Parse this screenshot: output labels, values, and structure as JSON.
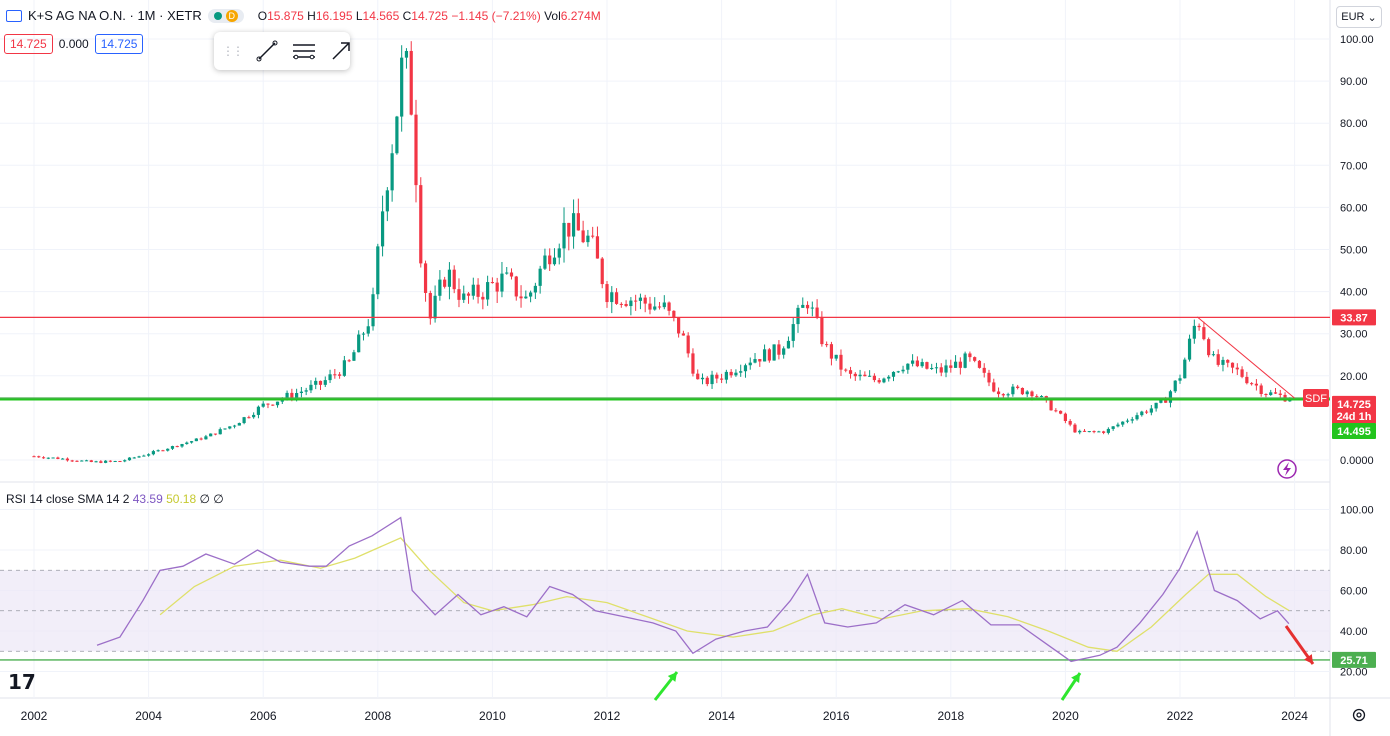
{
  "header": {
    "symbol_title": "K+S AG NA O.N. · 1M · XETR",
    "status_badge": "D",
    "o_label": "O",
    "o_value": "15.875",
    "h_label": "H",
    "h_value": "16.195",
    "l_label": "L",
    "l_value": "14.565",
    "c_label": "C",
    "c_value": "14.725",
    "change": "−1.145 (−7.21%)",
    "vol_label": "Vol",
    "vol_value": "6.274M"
  },
  "price_boxes": {
    "bid": "14.725",
    "spread": "0.000",
    "ask": "14.725"
  },
  "currency": "EUR",
  "rsi_legend": {
    "label": "RSI 14 close SMA 14 2",
    "rsi_value": "43.59",
    "sma_value": "50.18",
    "v3": "∅",
    "v4": "∅"
  },
  "colors": {
    "up": "#089981",
    "down": "#f23645",
    "rsi": "#9c6fc8",
    "rsi_sma": "#dfe06a",
    "hline_red": "#f23645",
    "hline_green": "#4caf50",
    "green_thick": "#22c41d"
  },
  "chart_data": [
    {
      "type": "candlestick",
      "interval": "1M",
      "x_ticks": [
        "2002",
        "2004",
        "2006",
        "2008",
        "2010",
        "2012",
        "2014",
        "2016",
        "2018",
        "2020",
        "2022",
        "2024"
      ],
      "y_ticks": [
        "100.00",
        "90.00",
        "80.00",
        "70.00",
        "60.00",
        "50.00",
        "40.00",
        "30.00",
        "20.00",
        "0.0000"
      ],
      "ylim": [
        0,
        100
      ],
      "close_series": [
        {
          "t": 2002.0,
          "c": 0.9
        },
        {
          "t": 2002.5,
          "c": 0.3
        },
        {
          "t": 2003.0,
          "c": -0.5
        },
        {
          "t": 2003.5,
          "c": -0.3
        },
        {
          "t": 2004.0,
          "c": 1.5
        },
        {
          "t": 2004.5,
          "c": 3.5
        },
        {
          "t": 2005.0,
          "c": 5.5
        },
        {
          "t": 2005.5,
          "c": 8.5
        },
        {
          "t": 2006.0,
          "c": 13.0
        },
        {
          "t": 2006.5,
          "c": 15.5
        },
        {
          "t": 2007.0,
          "c": 18.0
        },
        {
          "t": 2007.5,
          "c": 23.0
        },
        {
          "t": 2007.9,
          "c": 35.0
        },
        {
          "t": 2008.1,
          "c": 62.0
        },
        {
          "t": 2008.3,
          "c": 80.0
        },
        {
          "t": 2008.45,
          "c": 96.0
        },
        {
          "t": 2008.6,
          "c": 84.0
        },
        {
          "t": 2008.75,
          "c": 50.0
        },
        {
          "t": 2008.9,
          "c": 33.0
        },
        {
          "t": 2009.2,
          "c": 45.0
        },
        {
          "t": 2009.5,
          "c": 38.0
        },
        {
          "t": 2009.8,
          "c": 40.0
        },
        {
          "t": 2010.2,
          "c": 43.0
        },
        {
          "t": 2010.6,
          "c": 38.0
        },
        {
          "t": 2011.0,
          "c": 50.0
        },
        {
          "t": 2011.3,
          "c": 56.0
        },
        {
          "t": 2011.7,
          "c": 52.0
        },
        {
          "t": 2012.0,
          "c": 40.0
        },
        {
          "t": 2012.5,
          "c": 38.0
        },
        {
          "t": 2013.0,
          "c": 36.0
        },
        {
          "t": 2013.3,
          "c": 30.0
        },
        {
          "t": 2013.6,
          "c": 18.0
        },
        {
          "t": 2014.0,
          "c": 20.0
        },
        {
          "t": 2014.5,
          "c": 24.0
        },
        {
          "t": 2015.0,
          "c": 26.0
        },
        {
          "t": 2015.5,
          "c": 38.0
        },
        {
          "t": 2015.8,
          "c": 27.0
        },
        {
          "t": 2016.2,
          "c": 20.0
        },
        {
          "t": 2016.7,
          "c": 19.0
        },
        {
          "t": 2017.2,
          "c": 23.0
        },
        {
          "t": 2017.8,
          "c": 21.0
        },
        {
          "t": 2018.3,
          "c": 24.0
        },
        {
          "t": 2018.8,
          "c": 16.5
        },
        {
          "t": 2019.4,
          "c": 16.5
        },
        {
          "t": 2019.8,
          "c": 12.0
        },
        {
          "t": 2020.2,
          "c": 6.5
        },
        {
          "t": 2020.7,
          "c": 6.8
        },
        {
          "t": 2021.2,
          "c": 10.5
        },
        {
          "t": 2021.7,
          "c": 13.5
        },
        {
          "t": 2022.0,
          "c": 20.0
        },
        {
          "t": 2022.3,
          "c": 34.0
        },
        {
          "t": 2022.6,
          "c": 23.0
        },
        {
          "t": 2023.0,
          "c": 21.0
        },
        {
          "t": 2023.5,
          "c": 16.0
        },
        {
          "t": 2023.9,
          "c": 14.7
        }
      ],
      "horizontal_lines": [
        {
          "label": "33.87",
          "value": 33.87,
          "color": "#f23645"
        },
        {
          "label": "14.495",
          "value": 14.495,
          "color": "#22c41d"
        },
        {
          "value": 14.725,
          "color": "#4caf50"
        }
      ],
      "last_price_tag": {
        "symbol": "SDF",
        "price": "14.725",
        "countdown": "24d 1h"
      },
      "trendline": {
        "from": {
          "t": 2022.3,
          "v": 34.0
        },
        "to": {
          "t": 2024.0,
          "v": 14.7
        }
      }
    },
    {
      "type": "line",
      "title": "RSI 14 close SMA 14 2",
      "y_ticks": [
        "100.00",
        "80.00",
        "60.00",
        "40.00",
        "20.00"
      ],
      "ylim": [
        20,
        100
      ],
      "band": [
        30,
        70
      ],
      "horizontal_lines": [
        {
          "label": "25.71",
          "value": 25.71,
          "color": "#4caf50"
        }
      ],
      "series": [
        {
          "values": [
            {
              "t": 2003.1,
              "v": 33
            },
            {
              "t": 2003.5,
              "v": 37
            },
            {
              "t": 2003.9,
              "v": 55
            },
            {
              "t": 2004.2,
              "v": 70
            },
            {
              "t": 2004.6,
              "v": 72
            },
            {
              "t": 2005.0,
              "v": 78
            },
            {
              "t": 2005.5,
              "v": 73
            },
            {
              "t": 2005.9,
              "v": 80
            },
            {
              "t": 2006.3,
              "v": 74
            },
            {
              "t": 2006.8,
              "v": 72
            },
            {
              "t": 2007.1,
              "v": 72
            },
            {
              "t": 2007.5,
              "v": 82
            },
            {
              "t": 2007.9,
              "v": 87
            },
            {
              "t": 2008.4,
              "v": 96
            },
            {
              "t": 2008.6,
              "v": 60
            },
            {
              "t": 2009.0,
              "v": 48
            },
            {
              "t": 2009.4,
              "v": 58
            },
            {
              "t": 2009.8,
              "v": 48
            },
            {
              "t": 2010.2,
              "v": 52
            },
            {
              "t": 2010.6,
              "v": 47
            },
            {
              "t": 2011.0,
              "v": 62
            },
            {
              "t": 2011.4,
              "v": 58
            },
            {
              "t": 2011.8,
              "v": 50
            },
            {
              "t": 2012.3,
              "v": 47
            },
            {
              "t": 2012.8,
              "v": 44
            },
            {
              "t": 2013.2,
              "v": 40
            },
            {
              "t": 2013.5,
              "v": 29
            },
            {
              "t": 2013.9,
              "v": 36
            },
            {
              "t": 2014.4,
              "v": 40
            },
            {
              "t": 2014.8,
              "v": 42
            },
            {
              "t": 2015.2,
              "v": 55
            },
            {
              "t": 2015.5,
              "v": 68
            },
            {
              "t": 2015.8,
              "v": 44
            },
            {
              "t": 2016.2,
              "v": 42
            },
            {
              "t": 2016.7,
              "v": 44
            },
            {
              "t": 2017.2,
              "v": 53
            },
            {
              "t": 2017.7,
              "v": 48
            },
            {
              "t": 2018.2,
              "v": 55
            },
            {
              "t": 2018.7,
              "v": 43
            },
            {
              "t": 2019.2,
              "v": 43
            },
            {
              "t": 2019.7,
              "v": 33
            },
            {
              "t": 2020.1,
              "v": 25
            },
            {
              "t": 2020.6,
              "v": 28
            },
            {
              "t": 2020.9,
              "v": 32
            },
            {
              "t": 2021.3,
              "v": 44
            },
            {
              "t": 2021.7,
              "v": 58
            },
            {
              "t": 2022.0,
              "v": 71
            },
            {
              "t": 2022.3,
              "v": 89
            },
            {
              "t": 2022.6,
              "v": 60
            },
            {
              "t": 2023.0,
              "v": 55
            },
            {
              "t": 2023.4,
              "v": 46
            },
            {
              "t": 2023.7,
              "v": 50
            },
            {
              "t": 2023.9,
              "v": 43.59
            }
          ]
        },
        {
          "values": [
            {
              "t": 2004.2,
              "v": 48
            },
            {
              "t": 2004.8,
              "v": 62
            },
            {
              "t": 2005.5,
              "v": 72
            },
            {
              "t": 2006.3,
              "v": 75
            },
            {
              "t": 2007.0,
              "v": 71
            },
            {
              "t": 2007.6,
              "v": 76
            },
            {
              "t": 2008.4,
              "v": 86
            },
            {
              "t": 2008.9,
              "v": 70
            },
            {
              "t": 2009.5,
              "v": 54
            },
            {
              "t": 2010.0,
              "v": 50
            },
            {
              "t": 2010.7,
              "v": 53
            },
            {
              "t": 2011.3,
              "v": 57
            },
            {
              "t": 2012.0,
              "v": 54
            },
            {
              "t": 2012.7,
              "v": 47
            },
            {
              "t": 2013.4,
              "v": 40
            },
            {
              "t": 2014.2,
              "v": 37
            },
            {
              "t": 2014.9,
              "v": 40
            },
            {
              "t": 2015.6,
              "v": 48
            },
            {
              "t": 2016.1,
              "v": 51
            },
            {
              "t": 2016.8,
              "v": 46
            },
            {
              "t": 2017.5,
              "v": 50
            },
            {
              "t": 2018.3,
              "v": 51
            },
            {
              "t": 2019.0,
              "v": 47
            },
            {
              "t": 2019.7,
              "v": 40
            },
            {
              "t": 2020.4,
              "v": 32
            },
            {
              "t": 2020.9,
              "v": 30
            },
            {
              "t": 2021.5,
              "v": 42
            },
            {
              "t": 2022.1,
              "v": 58
            },
            {
              "t": 2022.5,
              "v": 68
            },
            {
              "t": 2023.0,
              "v": 68
            },
            {
              "t": 2023.5,
              "v": 57
            },
            {
              "t": 2023.9,
              "v": 50.18
            }
          ]
        }
      ]
    }
  ]
}
